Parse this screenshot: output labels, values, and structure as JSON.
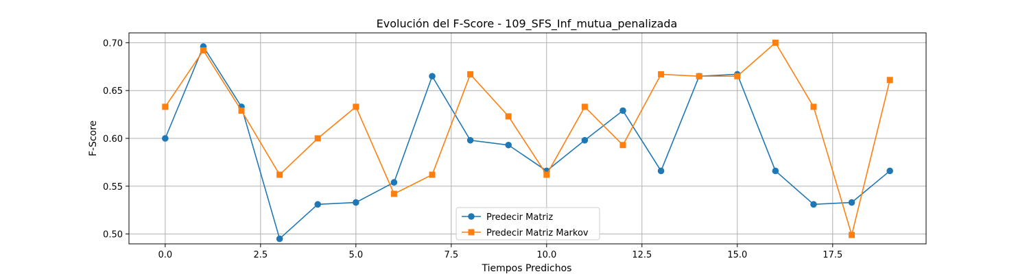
{
  "chart_data": {
    "type": "line",
    "title": "Evolución del F-Score - 109_SFS_Inf_mutua_penalizada",
    "xlabel": "Tiempos Predichos",
    "ylabel": "F-Score",
    "xlim": [
      -0.95,
      19.95
    ],
    "ylim": [
      0.4897,
      0.7103
    ],
    "xticks": [
      0.0,
      2.5,
      5.0,
      7.5,
      10.0,
      12.5,
      15.0,
      17.5
    ],
    "xtick_labels": [
      "0.0",
      "2.5",
      "5.0",
      "7.5",
      "10.0",
      "12.5",
      "15.0",
      "17.5"
    ],
    "yticks": [
      0.5,
      0.55,
      0.6,
      0.65,
      0.7
    ],
    "ytick_labels": [
      "0.50",
      "0.55",
      "0.60",
      "0.65",
      "0.70"
    ],
    "grid": true,
    "legend_position": "bottom-center",
    "x": [
      0,
      1,
      2,
      3,
      4,
      5,
      6,
      7,
      8,
      9,
      10,
      11,
      12,
      13,
      14,
      15,
      16,
      17,
      18,
      19
    ],
    "series": [
      {
        "name": "Predecir Matriz",
        "color": "#1f77b4",
        "marker": "circle",
        "values": [
          0.6,
          0.696,
          0.633,
          0.495,
          0.531,
          0.533,
          0.554,
          0.665,
          0.598,
          0.593,
          0.566,
          0.598,
          0.629,
          0.566,
          0.665,
          0.667,
          0.566,
          0.531,
          0.533,
          0.566
        ]
      },
      {
        "name": "Predecir Matriz Markov",
        "color": "#ff7f0e",
        "marker": "square",
        "values": [
          0.633,
          0.692,
          0.629,
          0.562,
          0.6,
          0.633,
          0.542,
          0.562,
          0.667,
          0.623,
          0.562,
          0.633,
          0.593,
          0.667,
          0.665,
          0.665,
          0.7,
          0.633,
          0.499,
          0.661
        ]
      }
    ]
  }
}
